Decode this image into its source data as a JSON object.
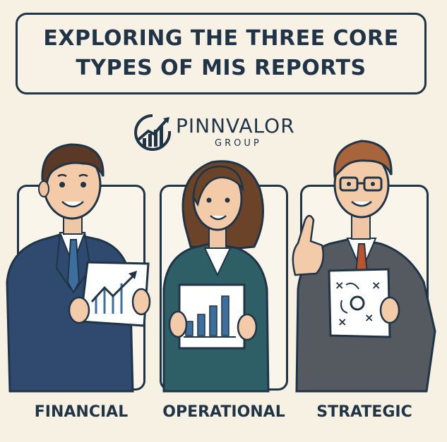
{
  "title": {
    "line1": "EXPLORING THE THREE CORE",
    "line2": "TYPES OF MIS REPORTS"
  },
  "logo": {
    "name": "PINNVALOR",
    "subtitle": "GROUP",
    "icon": "rising-chart-circle-icon"
  },
  "panels": [
    {
      "label": "FINANCIAL",
      "icon": "rising-line-chart-icon",
      "color": "#2f4a6e"
    },
    {
      "label": "OPERATIONAL",
      "icon": "bar-chart-icon",
      "color": "#2f5f66"
    },
    {
      "label": "STRATEGIC",
      "icon": "strategy-play-icon",
      "color": "#555a60"
    }
  ],
  "colors": {
    "background": "#f7f1e4",
    "ink": "#1f3447",
    "chart_blue": "#3d6f9e"
  }
}
